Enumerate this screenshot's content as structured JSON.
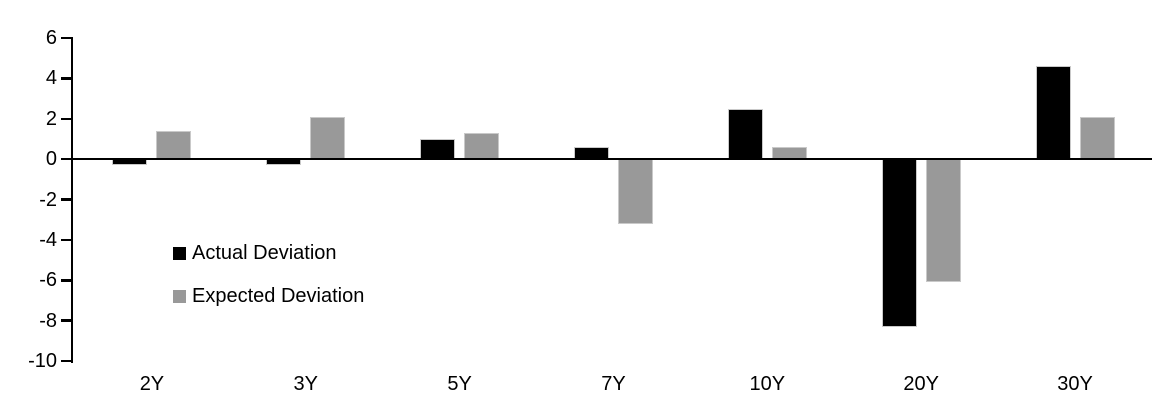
{
  "chart_data": {
    "type": "bar",
    "title": "",
    "xlabel": "",
    "ylabel": "",
    "categories": [
      "2Y",
      "3Y",
      "5Y",
      "7Y",
      "10Y",
      "20Y",
      "30Y"
    ],
    "series": [
      {
        "name": "Actual Deviation",
        "color": "#000000",
        "values": [
          -0.3,
          -0.3,
          1.0,
          0.6,
          2.5,
          -8.3,
          4.6
        ]
      },
      {
        "name": "Expected Deviation",
        "color": "#999999",
        "values": [
          1.4,
          2.1,
          1.3,
          -3.2,
          0.6,
          -6.1,
          2.1
        ]
      }
    ],
    "ylim": [
      -10,
      6
    ],
    "yticks": [
      6,
      4,
      2,
      0,
      -2,
      -4,
      -6,
      -8,
      -10
    ],
    "grid": false,
    "legend_position": "inside-top-left",
    "axis_color": "#000000",
    "background": "#ffffff"
  }
}
